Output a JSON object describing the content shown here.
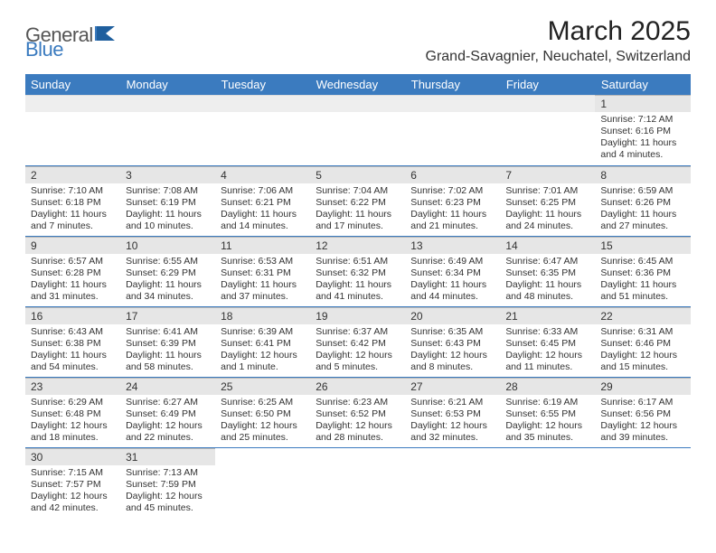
{
  "logo": {
    "textA": "General",
    "textB": "Blue"
  },
  "title": "March 2025",
  "location": "Grand-Savagnier, Neuchatel, Switzerland",
  "colors": {
    "header_bg": "#3b7bbf",
    "header_text": "#ffffff",
    "daynum_bg": "#e6e6e6",
    "grid_line": "#3b7bbf",
    "body_text": "#333333"
  },
  "typography": {
    "title_fontsize": 30,
    "location_fontsize": 16,
    "header_fontsize": 13,
    "cell_fontsize": 10.5
  },
  "days": [
    "Sunday",
    "Monday",
    "Tuesday",
    "Wednesday",
    "Thursday",
    "Friday",
    "Saturday"
  ],
  "weeks": [
    [
      null,
      null,
      null,
      null,
      null,
      null,
      {
        "n": "1",
        "sr": "7:12 AM",
        "ss": "6:16 PM",
        "dl": "11 hours and 4 minutes."
      }
    ],
    [
      {
        "n": "2",
        "sr": "7:10 AM",
        "ss": "6:18 PM",
        "dl": "11 hours and 7 minutes."
      },
      {
        "n": "3",
        "sr": "7:08 AM",
        "ss": "6:19 PM",
        "dl": "11 hours and 10 minutes."
      },
      {
        "n": "4",
        "sr": "7:06 AM",
        "ss": "6:21 PM",
        "dl": "11 hours and 14 minutes."
      },
      {
        "n": "5",
        "sr": "7:04 AM",
        "ss": "6:22 PM",
        "dl": "11 hours and 17 minutes."
      },
      {
        "n": "6",
        "sr": "7:02 AM",
        "ss": "6:23 PM",
        "dl": "11 hours and 21 minutes."
      },
      {
        "n": "7",
        "sr": "7:01 AM",
        "ss": "6:25 PM",
        "dl": "11 hours and 24 minutes."
      },
      {
        "n": "8",
        "sr": "6:59 AM",
        "ss": "6:26 PM",
        "dl": "11 hours and 27 minutes."
      }
    ],
    [
      {
        "n": "9",
        "sr": "6:57 AM",
        "ss": "6:28 PM",
        "dl": "11 hours and 31 minutes."
      },
      {
        "n": "10",
        "sr": "6:55 AM",
        "ss": "6:29 PM",
        "dl": "11 hours and 34 minutes."
      },
      {
        "n": "11",
        "sr": "6:53 AM",
        "ss": "6:31 PM",
        "dl": "11 hours and 37 minutes."
      },
      {
        "n": "12",
        "sr": "6:51 AM",
        "ss": "6:32 PM",
        "dl": "11 hours and 41 minutes."
      },
      {
        "n": "13",
        "sr": "6:49 AM",
        "ss": "6:34 PM",
        "dl": "11 hours and 44 minutes."
      },
      {
        "n": "14",
        "sr": "6:47 AM",
        "ss": "6:35 PM",
        "dl": "11 hours and 48 minutes."
      },
      {
        "n": "15",
        "sr": "6:45 AM",
        "ss": "6:36 PM",
        "dl": "11 hours and 51 minutes."
      }
    ],
    [
      {
        "n": "16",
        "sr": "6:43 AM",
        "ss": "6:38 PM",
        "dl": "11 hours and 54 minutes."
      },
      {
        "n": "17",
        "sr": "6:41 AM",
        "ss": "6:39 PM",
        "dl": "11 hours and 58 minutes."
      },
      {
        "n": "18",
        "sr": "6:39 AM",
        "ss": "6:41 PM",
        "dl": "12 hours and 1 minute."
      },
      {
        "n": "19",
        "sr": "6:37 AM",
        "ss": "6:42 PM",
        "dl": "12 hours and 5 minutes."
      },
      {
        "n": "20",
        "sr": "6:35 AM",
        "ss": "6:43 PM",
        "dl": "12 hours and 8 minutes."
      },
      {
        "n": "21",
        "sr": "6:33 AM",
        "ss": "6:45 PM",
        "dl": "12 hours and 11 minutes."
      },
      {
        "n": "22",
        "sr": "6:31 AM",
        "ss": "6:46 PM",
        "dl": "12 hours and 15 minutes."
      }
    ],
    [
      {
        "n": "23",
        "sr": "6:29 AM",
        "ss": "6:48 PM",
        "dl": "12 hours and 18 minutes."
      },
      {
        "n": "24",
        "sr": "6:27 AM",
        "ss": "6:49 PM",
        "dl": "12 hours and 22 minutes."
      },
      {
        "n": "25",
        "sr": "6:25 AM",
        "ss": "6:50 PM",
        "dl": "12 hours and 25 minutes."
      },
      {
        "n": "26",
        "sr": "6:23 AM",
        "ss": "6:52 PM",
        "dl": "12 hours and 28 minutes."
      },
      {
        "n": "27",
        "sr": "6:21 AM",
        "ss": "6:53 PM",
        "dl": "12 hours and 32 minutes."
      },
      {
        "n": "28",
        "sr": "6:19 AM",
        "ss": "6:55 PM",
        "dl": "12 hours and 35 minutes."
      },
      {
        "n": "29",
        "sr": "6:17 AM",
        "ss": "6:56 PM",
        "dl": "12 hours and 39 minutes."
      }
    ],
    [
      {
        "n": "30",
        "sr": "7:15 AM",
        "ss": "7:57 PM",
        "dl": "12 hours and 42 minutes."
      },
      {
        "n": "31",
        "sr": "7:13 AM",
        "ss": "7:59 PM",
        "dl": "12 hours and 45 minutes."
      },
      null,
      null,
      null,
      null,
      null
    ]
  ],
  "labels": {
    "sunrise": "Sunrise: ",
    "sunset": "Sunset: ",
    "daylight": "Daylight: "
  }
}
